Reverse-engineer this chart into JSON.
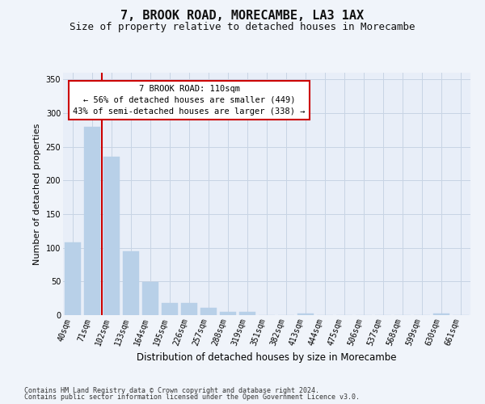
{
  "title": "7, BROOK ROAD, MORECAMBE, LA3 1AX",
  "subtitle": "Size of property relative to detached houses in Morecambe",
  "xlabel": "Distribution of detached houses by size in Morecambe",
  "ylabel": "Number of detached properties",
  "categories": [
    "40sqm",
    "71sqm",
    "102sqm",
    "133sqm",
    "164sqm",
    "195sqm",
    "226sqm",
    "257sqm",
    "288sqm",
    "319sqm",
    "351sqm",
    "382sqm",
    "413sqm",
    "444sqm",
    "475sqm",
    "506sqm",
    "537sqm",
    "568sqm",
    "599sqm",
    "630sqm",
    "661sqm"
  ],
  "values": [
    108,
    280,
    235,
    95,
    49,
    18,
    18,
    11,
    5,
    5,
    0,
    0,
    3,
    0,
    0,
    0,
    0,
    0,
    0,
    3,
    0
  ],
  "bar_color": "#b8d0e8",
  "bar_edge_color": "#b8d0e8",
  "grid_color": "#c8d4e4",
  "background_color": "#f0f4fa",
  "plot_bg_color": "#e8eef8",
  "redline_color": "#cc0000",
  "annotation_text": "7 BROOK ROAD: 110sqm\n← 56% of detached houses are smaller (449)\n43% of semi-detached houses are larger (338) →",
  "annotation_box_color": "#ffffff",
  "annotation_box_edge": "#cc0000",
  "ylim": [
    0,
    360
  ],
  "yticks": [
    0,
    50,
    100,
    150,
    200,
    250,
    300,
    350
  ],
  "footer1": "Contains HM Land Registry data © Crown copyright and database right 2024.",
  "footer2": "Contains public sector information licensed under the Open Government Licence v3.0.",
  "title_fontsize": 11,
  "subtitle_fontsize": 9,
  "tick_fontsize": 7,
  "ylabel_fontsize": 8,
  "xlabel_fontsize": 8.5,
  "footer_fontsize": 6,
  "annotation_fontsize": 7.5
}
